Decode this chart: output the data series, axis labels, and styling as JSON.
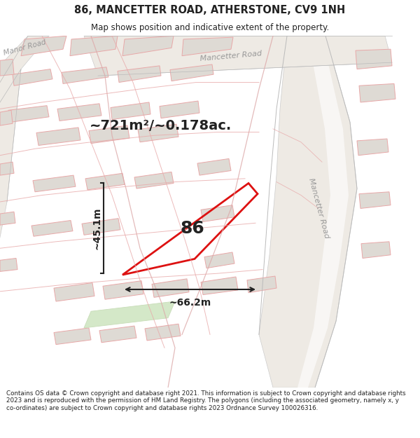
{
  "title": "86, MANCETTER ROAD, ATHERSTONE, CV9 1NH",
  "subtitle": "Map shows position and indicative extent of the property.",
  "footer": "Contains OS data © Crown copyright and database right 2021. This information is subject to Crown copyright and database rights 2023 and is reproduced with the permission of HM Land Registry. The polygons (including the associated geometry, namely x, y co-ordinates) are subject to Crown copyright and database rights 2023 Ordnance Survey 100026316.",
  "area_text": "~721m²/~0.178ac.",
  "label_86": "86",
  "dim_width": "~66.2m",
  "dim_height": "~45.1m",
  "map_bg": "#f5f3f0",
  "road_fill": "#e8e4de",
  "road_edge": "#e8c8c8",
  "building_fill": "#dedad4",
  "building_edge": "#e8a8a8",
  "highlight_color": "#dd1111",
  "dim_color": "#222222",
  "road_label_color": "#999999",
  "text_color": "#222222"
}
